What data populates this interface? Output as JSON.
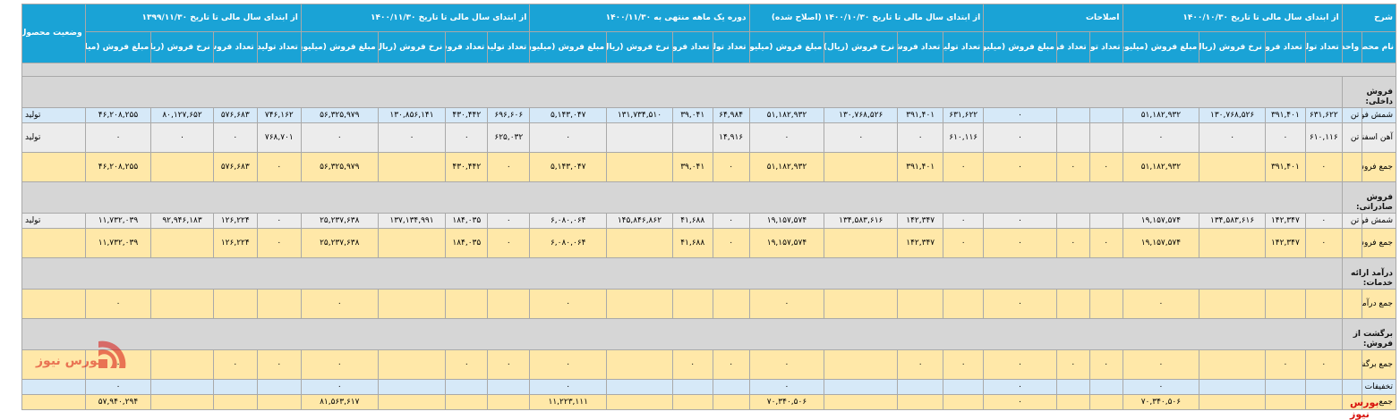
{
  "header": {
    "sharh": "شرح",
    "groups": [
      "از ابتدای سال مالی تا تاریخ ۱۴۰۰/۱۰/۳۰",
      "اصلاحات",
      "از ابتدای سال مالی تا تاریخ ۱۴۰۰/۱۰/۳۰ (اصلاح شده)",
      "دوره یک ماهه منتهی به ۱۴۰۰/۱۱/۳۰",
      "از ابتدای سال مالی تا تاریخ ۱۴۰۰/۱۱/۳۰",
      "از ابتدای سال مالی تا تاریخ ۱۳۹۹/۱۱/۳۰"
    ],
    "status": "وضعیت محصول-واحد",
    "name_col": "نام محصول",
    "unit_col": "واحد",
    "sub": [
      "تعداد تولید",
      "تعداد فروش",
      "نرخ فروش (ریال)",
      "مبلغ فروش (میلیون ریال)"
    ],
    "sub_no_rate": [
      "تعداد تولید",
      "تعداد فروش",
      "مبلغ فروش (میلیون ریال)"
    ]
  },
  "rows": [
    {
      "type": "blank"
    },
    {
      "type": "section",
      "label": "فروش داخلی:"
    },
    {
      "type": "data",
      "style": "blue r1",
      "name": "شمش فولادی",
      "unit": "تن",
      "cells": [
        "۶۳۱,۶۲۲",
        "۳۹۱,۴۰۱",
        "۱۳۰,۷۶۸,۵۲۶",
        "۵۱,۱۸۲,۹۳۲",
        "",
        "",
        "٠",
        "۶۳۱,۶۲۲",
        "۳۹۱,۴۰۱",
        "۱۳۰,۷۶۸,۵۲۶",
        "۵۱,۱۸۲,۹۳۲",
        "۶۴,۹۸۴",
        "۳۹,۰۴۱",
        "۱۳۱,۷۳۴,۵۱۰",
        "۵,۱۴۳,۰۴۷",
        "۶۹۶,۶۰۶",
        "۴۳۰,۴۴۲",
        "۱۳۰,۸۵۶,۱۴۱",
        "۵۶,۳۲۵,۹۷۹",
        "۷۴۶,۱۶۲",
        "۵۷۶,۶۸۳",
        "۸۰,۱۲۷,۶۵۲",
        "۴۶,۲۰۸,۲۵۵"
      ],
      "status": "تولید"
    },
    {
      "type": "data",
      "style": "gray r2",
      "name": "آهن اسفنجی ( DRI )",
      "unit": "تن",
      "cells": [
        "۶۱۰,۱۱۶",
        "٠",
        "٠",
        "٠",
        "",
        "",
        "٠",
        "۶۱۰,۱۱۶",
        "٠",
        "٠",
        "٠",
        "۱۴,۹۱۶",
        "",
        "",
        "٠",
        "۶۲۵,۰۳۲",
        "٠",
        "٠",
        "٠",
        "۷۶۸,۷۰۱",
        "٠",
        "٠",
        "٠"
      ],
      "status": "تولید"
    },
    {
      "type": "data",
      "style": "yellow r2",
      "name": "جمع فروش داخلی",
      "unit": "",
      "cells": [
        "٠",
        "۳۹۱,۴۰۱",
        "",
        "۵۱,۱۸۲,۹۳۲",
        "٠",
        "٠",
        "٠",
        "٠",
        "۳۹۱,۴۰۱",
        "",
        "۵۱,۱۸۲,۹۳۲",
        "٠",
        "۳۹,۰۴۱",
        "",
        "۵,۱۴۳,۰۴۷",
        "٠",
        "۴۳۰,۴۴۲",
        "",
        "۵۶,۳۲۵,۹۷۹",
        "٠",
        "۵۷۶,۶۸۳",
        "",
        "۴۶,۲۰۸,۲۵۵"
      ],
      "status": ""
    },
    {
      "type": "section",
      "label": "فروش صادراتی:"
    },
    {
      "type": "data",
      "style": "gray r1",
      "name": "شمش فولادی",
      "unit": "تن",
      "cells": [
        "٠",
        "۱۴۲,۳۴۷",
        "۱۳۴,۵۸۳,۶۱۶",
        "۱۹,۱۵۷,۵۷۴",
        "",
        "",
        "٠",
        "٠",
        "۱۴۲,۳۴۷",
        "۱۳۴,۵۸۳,۶۱۶",
        "۱۹,۱۵۷,۵۷۴",
        "٠",
        "۴۱,۶۸۸",
        "۱۴۵,۸۴۶,۸۶۲",
        "۶,۰۸۰,۰۶۴",
        "٠",
        "۱۸۴,۰۳۵",
        "۱۳۷,۱۳۴,۹۹۱",
        "۲۵,۲۳۷,۶۳۸",
        "٠",
        "۱۲۶,۲۲۴",
        "۹۲,۹۴۶,۱۸۳",
        "۱۱,۷۳۲,۰۳۹"
      ],
      "status": "تولید"
    },
    {
      "type": "data",
      "style": "yellow r2",
      "name": "جمع فروش صادراتی",
      "unit": "",
      "cells": [
        "٠",
        "۱۴۲,۳۴۷",
        "",
        "۱۹,۱۵۷,۵۷۴",
        "٠",
        "٠",
        "٠",
        "٠",
        "۱۴۲,۳۴۷",
        "",
        "۱۹,۱۵۷,۵۷۴",
        "٠",
        "۴۱,۶۸۸",
        "",
        "۶,۰۸۰,۰۶۴",
        "٠",
        "۱۸۴,۰۳۵",
        "",
        "۲۵,۲۳۷,۶۳۸",
        "٠",
        "۱۲۶,۲۲۴",
        "",
        "۱۱,۷۳۲,۰۳۹"
      ],
      "status": ""
    },
    {
      "type": "section",
      "label": "درآمد ارائه خدمات:"
    },
    {
      "type": "data",
      "style": "yellow r2",
      "name": "جمع درآمد ارائه خدمات",
      "unit": "",
      "cells": [
        "",
        "",
        "",
        "٠",
        "",
        "",
        "٠",
        "",
        "",
        "",
        "٠",
        "",
        "",
        "",
        "٠",
        "",
        "",
        "",
        "٠",
        "",
        "",
        "",
        "٠"
      ],
      "status": ""
    },
    {
      "type": "section",
      "label": "برگشت از فروش:"
    },
    {
      "type": "data",
      "style": "yellow r2",
      "name": "جمع برگشت از فروش",
      "unit": "",
      "cells": [
        "٠",
        "٠",
        "",
        "٠",
        "٠",
        "٠",
        "٠",
        "٠",
        "٠",
        "",
        "٠",
        "٠",
        "٠",
        "",
        "٠",
        "٠",
        "٠",
        "",
        "٠",
        "٠",
        "٠",
        "",
        "٠"
      ],
      "status": ""
    },
    {
      "type": "data",
      "style": "blue r1",
      "name": "تخفیفات",
      "unit": "",
      "cells": [
        "",
        "",
        "",
        "٠",
        "",
        "",
        "٠",
        "",
        "",
        "",
        "٠",
        "",
        "",
        "",
        "٠",
        "",
        "",
        "",
        "٠",
        "",
        "",
        "",
        "٠"
      ],
      "status": ""
    },
    {
      "type": "data",
      "style": "yellow r1",
      "name": "جمع",
      "unit": "",
      "cells": [
        "",
        "",
        "",
        "۷۰,۳۴۰,۵۰۶",
        "",
        "",
        "٠",
        "",
        "",
        "",
        "۷۰,۳۴۰,۵۰۶",
        "",
        "",
        "",
        "۱۱,۲۲۳,۱۱۱",
        "",
        "",
        "",
        "۸۱,۵۶۳,۶۱۷",
        "",
        "",
        "",
        "۵۷,۹۴۰,۲۹۴"
      ],
      "status": ""
    }
  ],
  "watermark": {
    "text": "بورس نیوز",
    "color": "#d8140f"
  },
  "corner_logo": "بورس نیوز"
}
